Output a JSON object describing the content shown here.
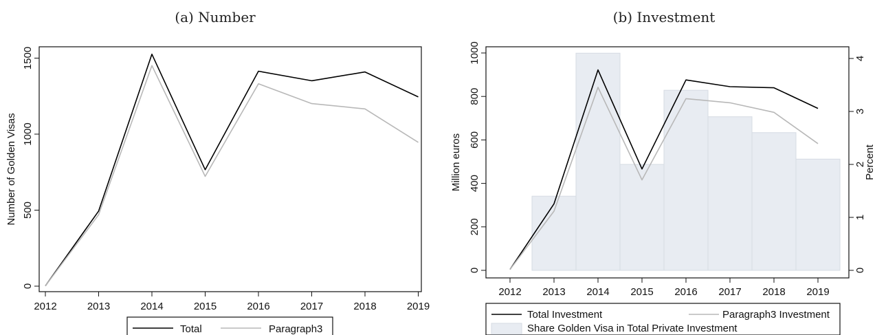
{
  "chart_data": [
    {
      "type": "line",
      "title": "(a) Number",
      "xlabel": "",
      "ylabel": "Number of Golden Visas",
      "categories": [
        "2012",
        "2013",
        "2014",
        "2015",
        "2016",
        "2017",
        "2018",
        "2019"
      ],
      "x": [
        2012,
        2013,
        2014,
        2015,
        2016,
        2017,
        2018,
        2019
      ],
      "ylim": [
        0,
        1560
      ],
      "yticks": [
        "0",
        "500",
        "1000",
        "1500"
      ],
      "series": [
        {
          "name": "Total",
          "color": "#000000",
          "values": [
            2,
            494,
            1526,
            766,
            1414,
            1351,
            1409,
            1245
          ]
        },
        {
          "name": "Paragraph3",
          "color": "#b8b8b8",
          "values": [
            2,
            470,
            1451,
            722,
            1331,
            1201,
            1166,
            946
          ]
        }
      ],
      "legend": {
        "position": "bottom",
        "items": [
          "Total",
          "Paragraph3"
        ]
      },
      "grid": false
    },
    {
      "type": "bar",
      "title": "(b) Investment",
      "xlabel": "",
      "ylabel": "Million euros",
      "y2label": "Percent",
      "categories": [
        "2012",
        "2013",
        "2014",
        "2015",
        "2016",
        "2017",
        "2018",
        "2019"
      ],
      "x": [
        2012,
        2013,
        2014,
        2015,
        2016,
        2017,
        2018,
        2019
      ],
      "ylim": [
        0,
        1000
      ],
      "y2lim": [
        0,
        4
      ],
      "yticks": [
        "0",
        "200",
        "400",
        "600",
        "800",
        "1000"
      ],
      "y2ticks": [
        "0",
        "1",
        "2",
        "3",
        "4"
      ],
      "bars": {
        "name": "Share Golden Visa in Total Private Investment",
        "axis": "right",
        "color": "#e8ecf2",
        "x": [
          2013,
          2014,
          2015,
          2016,
          2017,
          2018,
          2019
        ],
        "values": [
          1.4,
          4.1,
          2.0,
          3.4,
          2.9,
          2.6,
          2.1
        ]
      },
      "series": [
        {
          "name": "Total Investment",
          "axis": "left",
          "color": "#000000",
          "values": [
            4,
            306,
            922,
            466,
            876,
            845,
            840,
            745
          ]
        },
        {
          "name": "Paragraph3 Investment",
          "axis": "left",
          "color": "#b8b8b8",
          "values": [
            4,
            272,
            842,
            416,
            790,
            771,
            727,
            583
          ]
        }
      ],
      "legend": {
        "position": "bottom",
        "items": [
          "Total Investment",
          "Paragraph3 Investment",
          "Share Golden Visa in Total Private Investment"
        ]
      },
      "grid": false
    }
  ]
}
